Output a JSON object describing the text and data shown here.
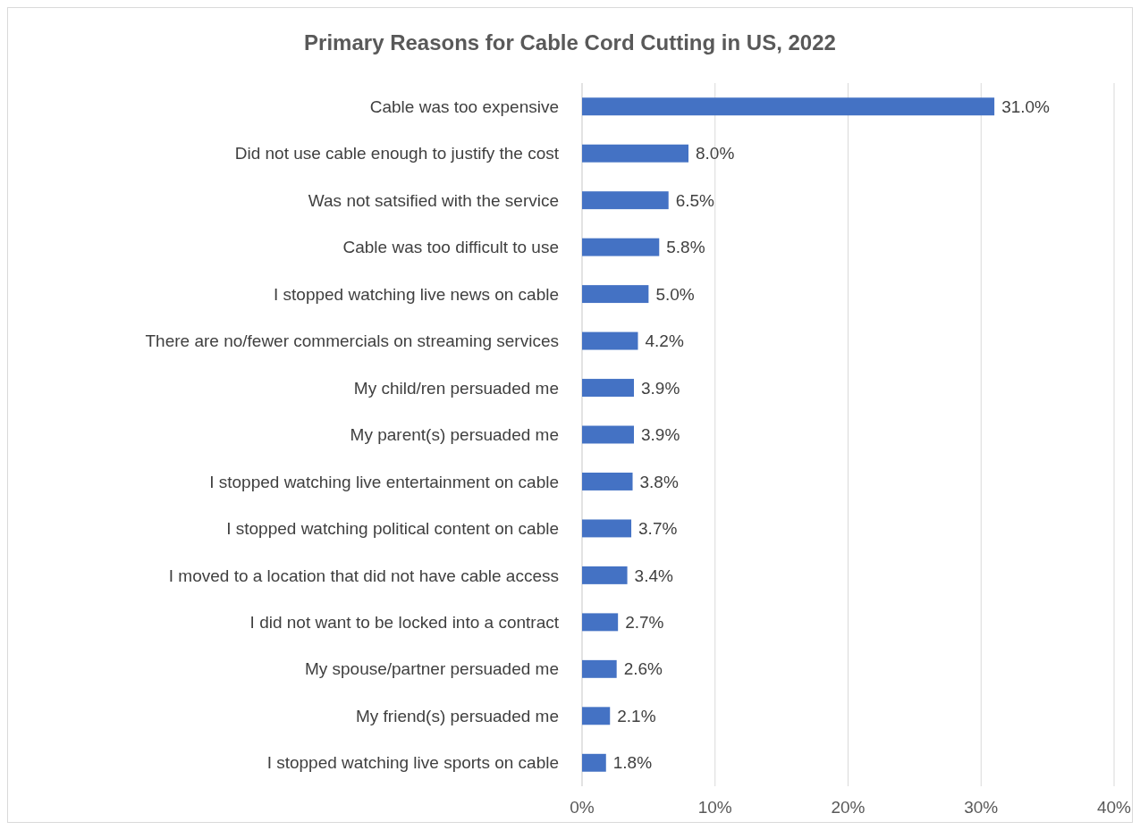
{
  "chart_data": {
    "type": "bar",
    "orientation": "horizontal",
    "title": "Primary Reasons for Cable Cord Cutting in US, 2022",
    "categories": [
      "Cable was too expensive",
      "Did not use cable enough to justify the cost",
      "Was not satsified with the service",
      "Cable was too difficult to use",
      "I stopped watching live news on cable",
      "There are no/fewer commercials on streaming services",
      "My child/ren persuaded me",
      "My parent(s) persuaded me",
      "I stopped watching live entertainment on cable",
      "I stopped watching political content on cable",
      "I moved to a location that did not have cable access",
      "I did not want to be locked into a contract",
      "My spouse/partner persuaded me",
      "My friend(s) persuaded me",
      "I stopped watching live sports on cable"
    ],
    "values": [
      31.0,
      8.0,
      6.5,
      5.8,
      5.0,
      4.2,
      3.9,
      3.9,
      3.8,
      3.7,
      3.4,
      2.7,
      2.6,
      2.1,
      1.8
    ],
    "value_labels": [
      "31.0%",
      "8.0%",
      "6.5%",
      "5.8%",
      "5.0%",
      "4.2%",
      "3.9%",
      "3.9%",
      "3.8%",
      "3.7%",
      "3.4%",
      "2.7%",
      "2.6%",
      "2.1%",
      "1.8%"
    ],
    "color": "#4472c4",
    "xlim": [
      0,
      40
    ],
    "xticks": [
      {
        "value": 0,
        "label": "0%"
      },
      {
        "value": 10,
        "label": "10%"
      },
      {
        "value": 20,
        "label": "20%"
      },
      {
        "value": 30,
        "label": "30%"
      },
      {
        "value": 40,
        "label": "40%"
      }
    ],
    "grid": "x"
  }
}
